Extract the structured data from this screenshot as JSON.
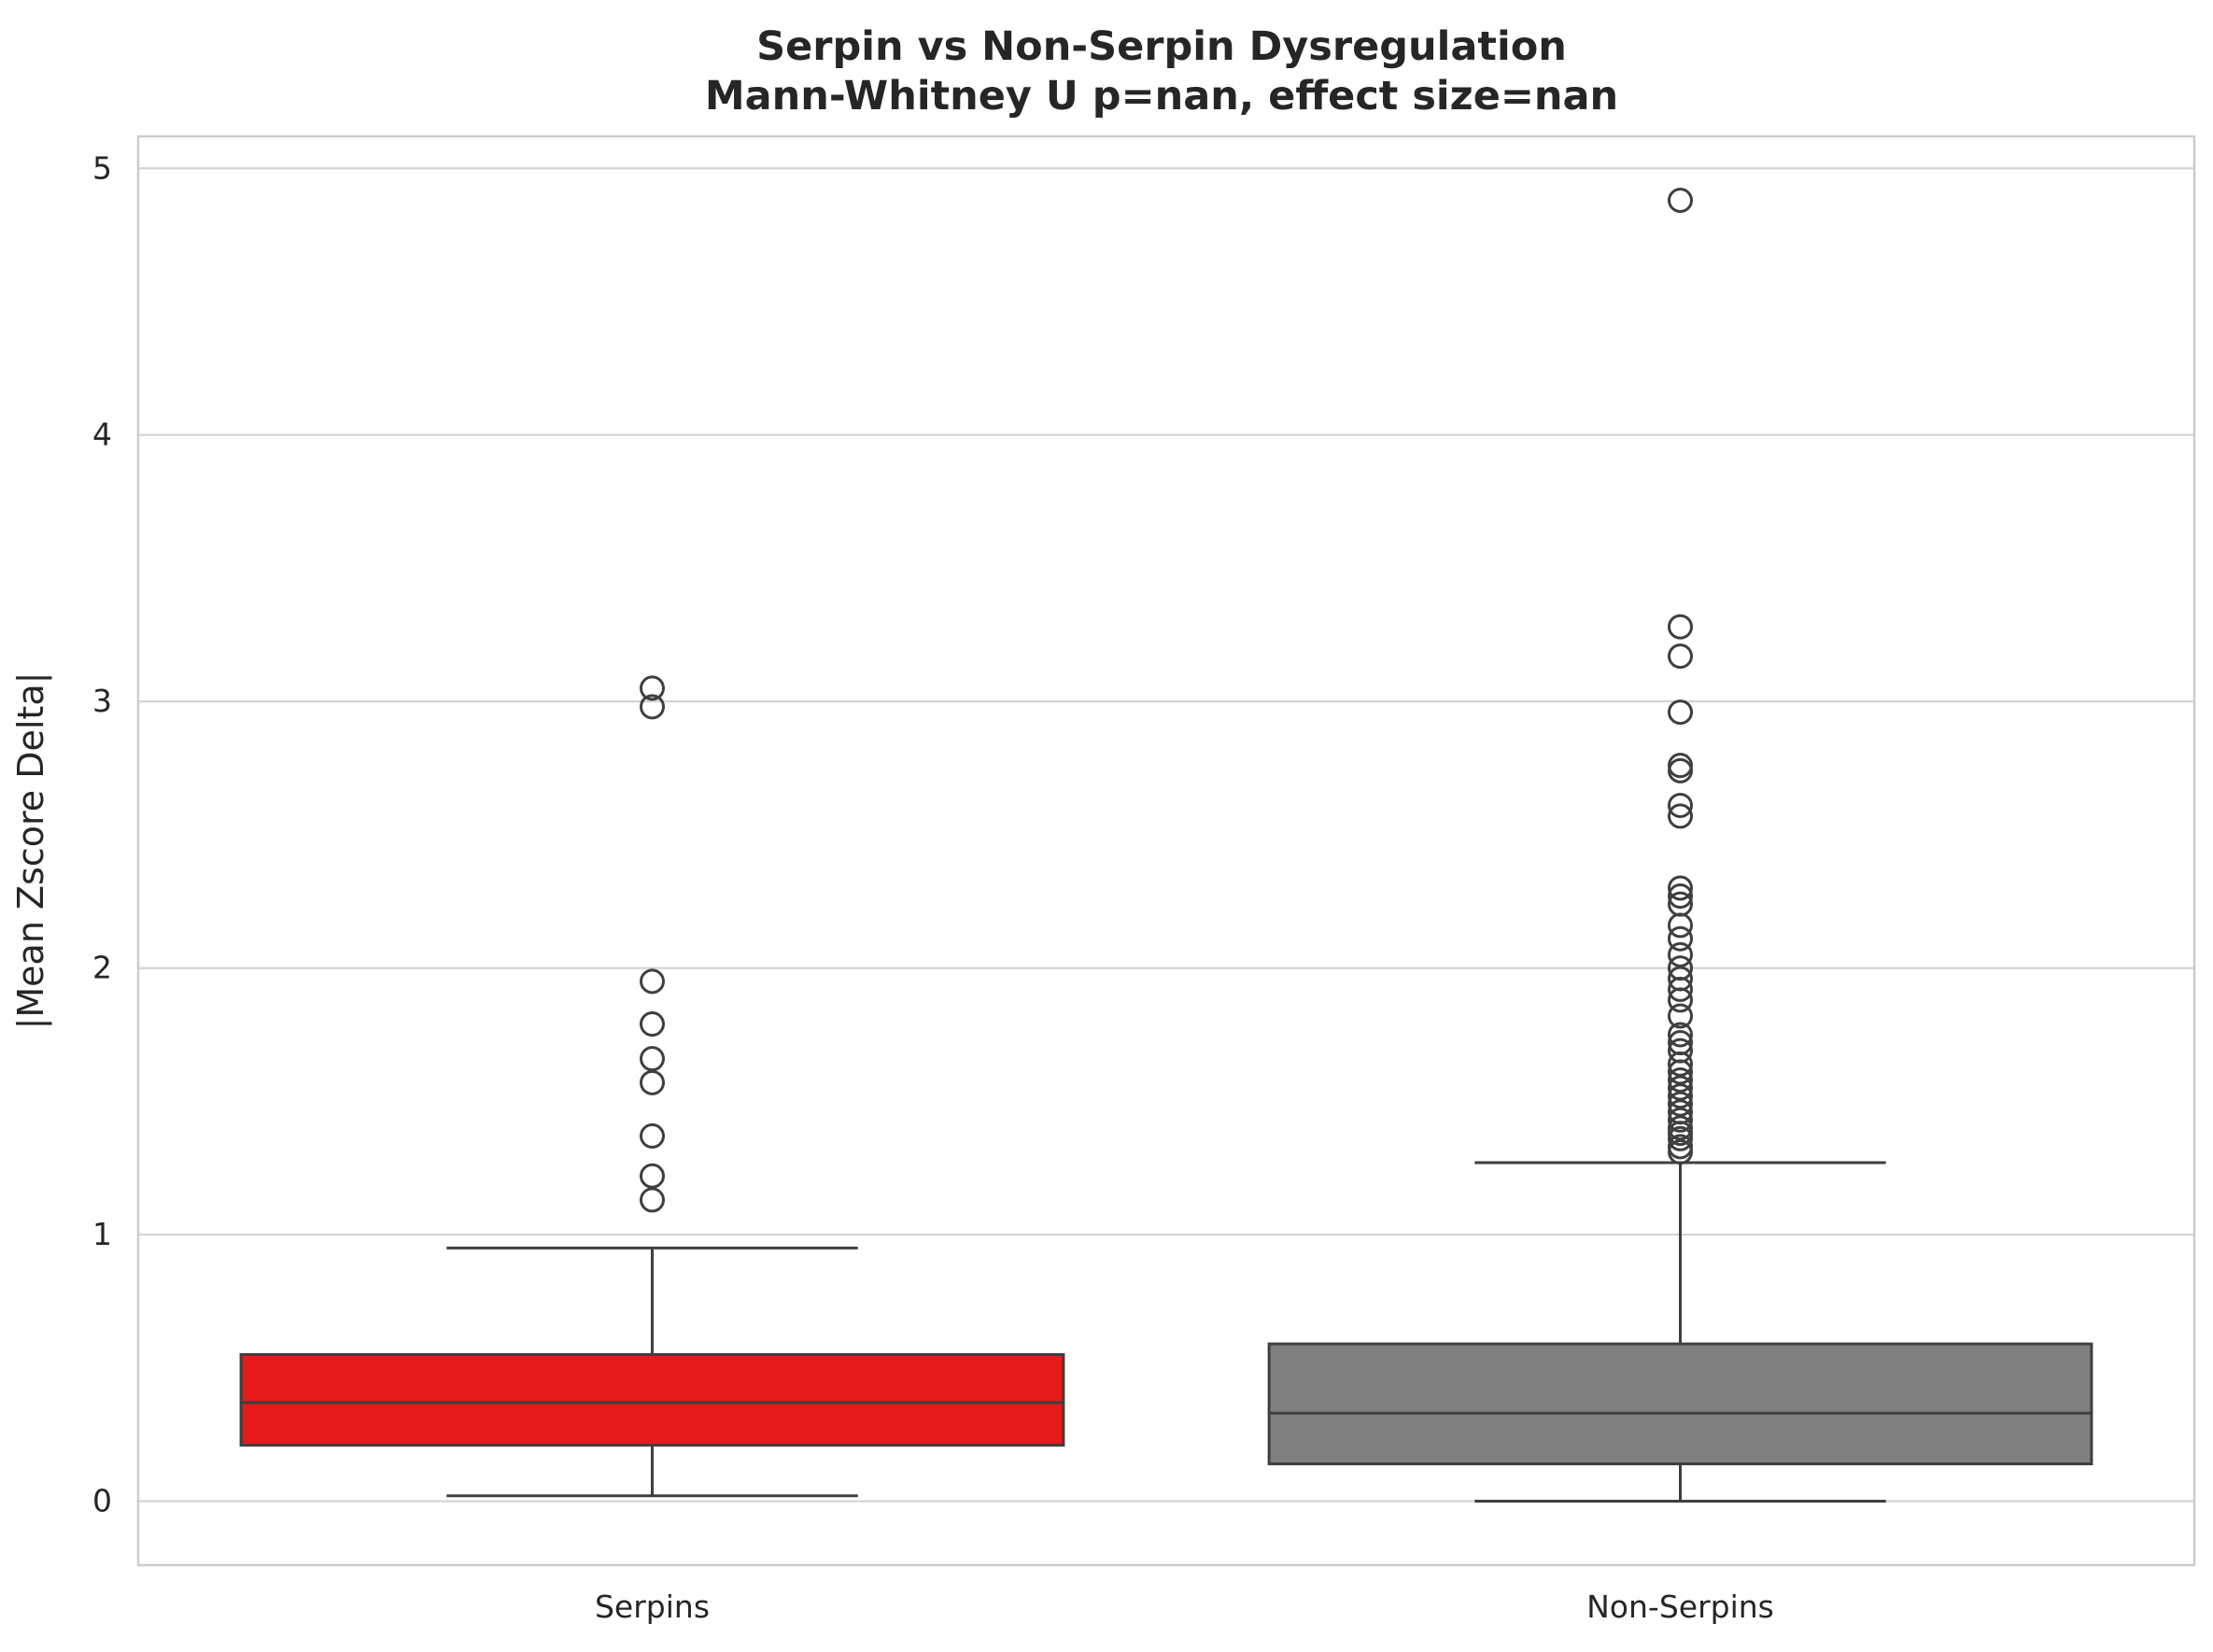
{
  "chart_data": {
    "type": "box",
    "title": "Serpin vs Non-Serpin Dysregulation",
    "subtitle": "Mann-Whitney U p=nan, effect size=nan",
    "xlabel": "",
    "ylabel": "|Mean Zscore Delta|",
    "ylim": [
      -0.24,
      5.12
    ],
    "yticks": [
      0,
      1,
      2,
      3,
      4,
      5
    ],
    "ytick_labels": [
      "0",
      "1",
      "2",
      "3",
      "4",
      "5"
    ],
    "grid": true,
    "categories": [
      "Serpins",
      "Non-Serpins"
    ],
    "series": [
      {
        "category": "Serpins",
        "color": "#e41a1c",
        "whisker_low": 0.02,
        "q1": 0.21,
        "median": 0.37,
        "q3": 0.55,
        "whisker_high": 0.95,
        "outliers": [
          1.13,
          1.22,
          1.37,
          1.57,
          1.66,
          1.79,
          1.95,
          2.98,
          3.05
        ]
      },
      {
        "category": "Non-Serpins",
        "color": "#808080",
        "whisker_low": 0.0,
        "q1": 0.14,
        "median": 0.33,
        "q3": 0.59,
        "whisker_high": 1.27,
        "outliers": [
          1.31,
          1.33,
          1.36,
          1.38,
          1.4,
          1.43,
          1.46,
          1.49,
          1.52,
          1.55,
          1.58,
          1.61,
          1.64,
          1.69,
          1.72,
          1.75,
          1.82,
          1.88,
          1.92,
          1.96,
          2.0,
          2.05,
          2.11,
          2.16,
          2.24,
          2.27,
          2.3,
          2.57,
          2.61,
          2.74,
          2.76,
          2.96,
          3.17,
          3.28,
          4.88
        ]
      }
    ],
    "line_color": "#3f3f3f"
  }
}
